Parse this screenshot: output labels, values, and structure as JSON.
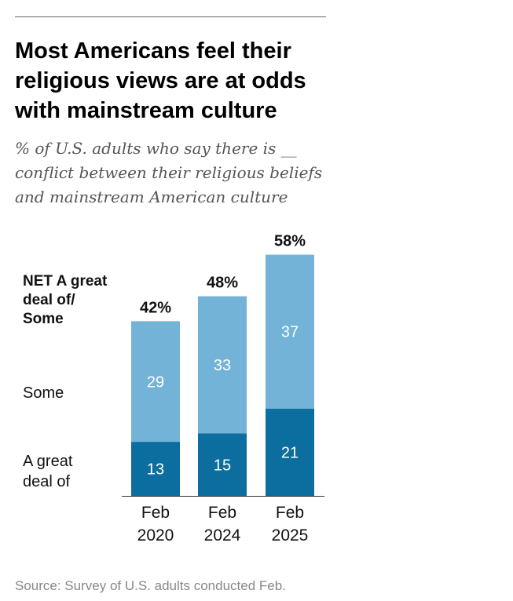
{
  "title": "Most Americans feel their religious views are at odds with mainstream culture",
  "subtitle": "% of U.S. adults who say there is __ conflict between their religious beliefs and mainstream American culture",
  "source": "Source: Survey of U.S. adults conducted Feb.",
  "colors": {
    "great_deal": "#0B6E9E",
    "some": "#73B3D8",
    "axis": "#333333"
  },
  "chart_data": {
    "type": "bar",
    "stacked": true,
    "categories": [
      [
        "Feb",
        "2020"
      ],
      [
        "Feb",
        "2024"
      ],
      [
        "Feb",
        "2025"
      ]
    ],
    "series": [
      {
        "name": "A great deal of",
        "label_lines": [
          "A great",
          "deal of"
        ],
        "values": [
          13,
          15,
          21
        ]
      },
      {
        "name": "Some",
        "label_lines": [
          "Some"
        ],
        "values": [
          29,
          33,
          37
        ]
      }
    ],
    "totals": {
      "name": "NET A great deal of/ Some",
      "label_lines": [
        "NET A great",
        "deal of/",
        "Some"
      ],
      "values": [
        "42%",
        "48%",
        "58%"
      ]
    },
    "ylim": [
      0,
      100
    ],
    "grid": false,
    "legend": "left"
  }
}
